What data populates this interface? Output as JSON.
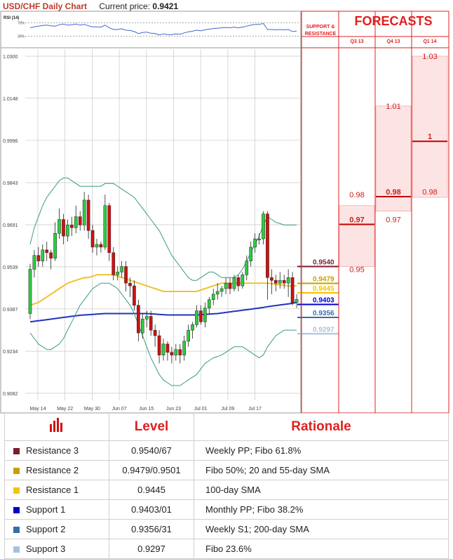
{
  "header": {
    "title": "USD/CHF Daily Chart",
    "current_price_label": "Current price:",
    "current_price": "0.9421"
  },
  "rsi": {
    "label": "RSI (14)",
    "levels": [
      "70%",
      "30%"
    ]
  },
  "forecasts": {
    "title": "FORECASTS",
    "sr_label": "SUPPORT & RESISTANCE",
    "quarters": [
      "Q3 13",
      "Q4 13",
      "Q1 14"
    ],
    "columns": [
      {
        "quarter": "Q3 13",
        "range": [
          0.954,
          0.976
        ],
        "values": [
          {
            "text": "0.98",
            "price": 0.979,
            "bold": false
          },
          {
            "text": "0.97",
            "price": 0.97,
            "bold": true
          },
          {
            "text": "0.95",
            "price": 0.952,
            "bold": false
          }
        ]
      },
      {
        "quarter": "Q4 13",
        "range": [
          0.974,
          1.012
        ],
        "values": [
          {
            "text": "1.01",
            "price": 1.011,
            "bold": false
          },
          {
            "text": "0.98",
            "price": 0.98,
            "bold": true
          },
          {
            "text": "0.97",
            "price": 0.97,
            "bold": false
          }
        ]
      },
      {
        "quarter": "Q1 14",
        "range": [
          0.979,
          1.03
        ],
        "values": [
          {
            "text": "1.03",
            "price": 1.029,
            "bold": false
          },
          {
            "text": "1",
            "price": 1.0,
            "bold": true
          },
          {
            "text": "0.98",
            "price": 0.98,
            "bold": false
          }
        ]
      }
    ]
  },
  "colors": {
    "resistance3": "#7b1e2e",
    "resistance2": "#c8a000",
    "resistance1": "#f5c400",
    "support1": "#0000cc",
    "support2": "#3a6ea5",
    "support3": "#a8c0e0",
    "candle_up": "#2ecc40",
    "candle_down": "#cc1111",
    "sma_yellow": "#f2c12e",
    "sma_blue": "#2233bb",
    "bollinger": "#3a9a8a",
    "forecast_fill": "#fde4e4",
    "forecast_border": "#f4a0a0"
  },
  "chart_data": {
    "type": "candlestick",
    "title": "USD/CHF Daily Chart",
    "ylim": [
      0.9082,
      1.03
    ],
    "y_ticks": [
      "0.9082",
      "0.9234",
      "0.9387",
      "0.9539",
      "0.9691",
      "0.9843",
      "0.9996",
      "1.0148",
      "1.0300"
    ],
    "x_ticks": [
      "May 14",
      "May 22",
      "May 30",
      "Jun 07",
      "Jun 15",
      "Jun 23",
      "Jul 01",
      "Jul 09",
      "Jul 17"
    ],
    "grid": true,
    "candles": [
      [
        0.937,
        0.953,
        0.935,
        0.955
      ],
      [
        0.953,
        0.958,
        0.95,
        0.96
      ],
      [
        0.958,
        0.956,
        0.954,
        0.961
      ],
      [
        0.956,
        0.96,
        0.954,
        0.962
      ],
      [
        0.96,
        0.959,
        0.956,
        0.963
      ],
      [
        0.959,
        0.957,
        0.953,
        0.96
      ],
      [
        0.957,
        0.966,
        0.956,
        0.97
      ],
      [
        0.966,
        0.971,
        0.964,
        0.975
      ],
      [
        0.971,
        0.965,
        0.962,
        0.973
      ],
      [
        0.965,
        0.969,
        0.963,
        0.971
      ],
      [
        0.969,
        0.968,
        0.965,
        0.972
      ],
      [
        0.968,
        0.972,
        0.966,
        0.976
      ],
      [
        0.972,
        0.969,
        0.967,
        0.974
      ],
      [
        0.969,
        0.978,
        0.967,
        0.981
      ],
      [
        0.978,
        0.967,
        0.964,
        0.98
      ],
      [
        0.967,
        0.961,
        0.959,
        0.969
      ],
      [
        0.961,
        0.962,
        0.958,
        0.964
      ],
      [
        0.962,
        0.961,
        0.959,
        0.963
      ],
      [
        0.961,
        0.976,
        0.96,
        0.98
      ],
      [
        0.976,
        0.959,
        0.956,
        0.977
      ],
      [
        0.959,
        0.951,
        0.949,
        0.961
      ],
      [
        0.951,
        0.952,
        0.949,
        0.954
      ],
      [
        0.952,
        0.954,
        0.95,
        0.956
      ],
      [
        0.954,
        0.948,
        0.945,
        0.956
      ],
      [
        0.948,
        0.947,
        0.943,
        0.95
      ],
      [
        0.947,
        0.94,
        0.938,
        0.949
      ],
      [
        0.94,
        0.93,
        0.927,
        0.942
      ],
      [
        0.93,
        0.935,
        0.928,
        0.937
      ],
      [
        0.935,
        0.936,
        0.932,
        0.938
      ],
      [
        0.936,
        0.931,
        0.929,
        0.938
      ],
      [
        0.931,
        0.929,
        0.925,
        0.933
      ],
      [
        0.929,
        0.922,
        0.919,
        0.931
      ],
      [
        0.922,
        0.926,
        0.92,
        0.928
      ],
      [
        0.926,
        0.923,
        0.92,
        0.927
      ],
      [
        0.923,
        0.922,
        0.919,
        0.925
      ],
      [
        0.922,
        0.924,
        0.92,
        0.926
      ],
      [
        0.924,
        0.922,
        0.919,
        0.926
      ],
      [
        0.922,
        0.927,
        0.92,
        0.929
      ],
      [
        0.927,
        0.931,
        0.925,
        0.933
      ],
      [
        0.931,
        0.933,
        0.928,
        0.934
      ],
      [
        0.933,
        0.938,
        0.932,
        0.94
      ],
      [
        0.938,
        0.934,
        0.933,
        0.94
      ],
      [
        0.934,
        0.939,
        0.932,
        0.941
      ],
      [
        0.939,
        0.942,
        0.937,
        0.943
      ],
      [
        0.942,
        0.944,
        0.94,
        0.946
      ],
      [
        0.944,
        0.945,
        0.942,
        0.948
      ],
      [
        0.945,
        0.946,
        0.943,
        0.947
      ],
      [
        0.946,
        0.948,
        0.944,
        0.95
      ],
      [
        0.948,
        0.946,
        0.944,
        0.95
      ],
      [
        0.946,
        0.95,
        0.945,
        0.951
      ],
      [
        0.95,
        0.947,
        0.945,
        0.951
      ],
      [
        0.947,
        0.951,
        0.946,
        0.952
      ],
      [
        0.951,
        0.956,
        0.949,
        0.958
      ],
      [
        0.956,
        0.961,
        0.954,
        0.963
      ],
      [
        0.961,
        0.964,
        0.959,
        0.966
      ],
      [
        0.964,
        0.964,
        0.962,
        0.966
      ],
      [
        0.964,
        0.973,
        0.962,
        0.974
      ],
      [
        0.973,
        0.95,
        0.942,
        0.974
      ],
      [
        0.95,
        0.949,
        0.944,
        0.953
      ],
      [
        0.949,
        0.948,
        0.945,
        0.951
      ],
      [
        0.948,
        0.949,
        0.946,
        0.952
      ],
      [
        0.949,
        0.948,
        0.946,
        0.951
      ],
      [
        0.948,
        0.95,
        0.943,
        0.953
      ],
      [
        0.95,
        0.941,
        0.94,
        0.952
      ],
      [
        0.941,
        0.9421,
        0.939,
        0.944
      ]
    ],
    "series": [
      {
        "name": "SMA",
        "color": "#f2c12e",
        "values": [
          0.94,
          0.9405,
          0.941,
          0.942,
          0.943,
          0.944,
          0.945,
          0.946,
          0.947,
          0.948,
          0.9485,
          0.949,
          0.9495,
          0.95,
          0.95,
          0.9505,
          0.951,
          0.951,
          0.951,
          0.951,
          0.951,
          0.9505,
          0.95,
          0.9495,
          0.949,
          0.9485,
          0.948,
          0.9475,
          0.947,
          0.9465,
          0.946,
          0.9455,
          0.945,
          0.945,
          0.945,
          0.945,
          0.945,
          0.945,
          0.945,
          0.945,
          0.945,
          0.9455,
          0.946,
          0.9465,
          0.947,
          0.9475,
          0.948,
          0.948,
          0.948,
          0.948,
          0.948,
          0.948,
          0.948,
          0.948,
          0.948,
          0.948,
          0.948,
          0.948,
          0.9478,
          0.9476,
          0.9474,
          0.9472,
          0.947,
          0.947,
          0.947
        ]
      },
      {
        "name": "SMA",
        "color": "#2233bb",
        "values": [
          0.934,
          0.9342,
          0.9344,
          0.9346,
          0.9348,
          0.935,
          0.9352,
          0.9354,
          0.9356,
          0.9358,
          0.936,
          0.9362,
          0.9364,
          0.9365,
          0.9366,
          0.9367,
          0.9368,
          0.9369,
          0.937,
          0.937,
          0.937,
          0.937,
          0.937,
          0.937,
          0.937,
          0.937,
          0.937,
          0.937,
          0.937,
          0.9369,
          0.9368,
          0.9367,
          0.9366,
          0.9365,
          0.9365,
          0.9365,
          0.9365,
          0.9365,
          0.9365,
          0.9365,
          0.9365,
          0.9366,
          0.9367,
          0.9368,
          0.9369,
          0.937,
          0.9372,
          0.9374,
          0.9376,
          0.9378,
          0.938,
          0.9382,
          0.9384,
          0.9386,
          0.9388,
          0.939,
          0.9392,
          0.9395,
          0.9397,
          0.9399,
          0.9401,
          0.9403,
          0.9405,
          0.9407,
          0.941
        ]
      },
      {
        "name": "Bollinger upper",
        "color": "#3a9a8a",
        "values": [
          0.962,
          0.968,
          0.972,
          0.976,
          0.979,
          0.981,
          0.983,
          0.985,
          0.986,
          0.986,
          0.985,
          0.984,
          0.983,
          0.983,
          0.983,
          0.983,
          0.983,
          0.983,
          0.984,
          0.984,
          0.984,
          0.983,
          0.982,
          0.981,
          0.98,
          0.979,
          0.977,
          0.975,
          0.973,
          0.971,
          0.969,
          0.967,
          0.964,
          0.961,
          0.958,
          0.956,
          0.954,
          0.952,
          0.95,
          0.949,
          0.949,
          0.95,
          0.951,
          0.952,
          0.952,
          0.951,
          0.95,
          0.95,
          0.95,
          0.95,
          0.951,
          0.953,
          0.956,
          0.959,
          0.962,
          0.965,
          0.969,
          0.972,
          0.971,
          0.97,
          0.9695,
          0.969,
          0.969,
          0.969,
          0.969
        ]
      },
      {
        "name": "Bollinger lower",
        "color": "#3a9a8a",
        "values": [
          0.93,
          0.928,
          0.926,
          0.925,
          0.924,
          0.924,
          0.925,
          0.926,
          0.928,
          0.931,
          0.934,
          0.937,
          0.94,
          0.942,
          0.944,
          0.946,
          0.947,
          0.948,
          0.948,
          0.948,
          0.947,
          0.946,
          0.944,
          0.942,
          0.94,
          0.937,
          0.933,
          0.929,
          0.925,
          0.921,
          0.918,
          0.915,
          0.913,
          0.912,
          0.911,
          0.911,
          0.911,
          0.912,
          0.913,
          0.914,
          0.915,
          0.917,
          0.919,
          0.92,
          0.921,
          0.9215,
          0.922,
          0.923,
          0.924,
          0.925,
          0.925,
          0.925,
          0.924,
          0.923,
          0.922,
          0.921,
          0.922,
          0.925,
          0.927,
          0.929,
          0.93,
          0.931,
          0.931,
          0.931,
          0.931
        ]
      }
    ],
    "rsi_values": [
      55,
      58,
      60,
      62,
      63,
      61,
      60,
      64,
      66,
      63,
      64,
      66,
      63,
      65,
      61,
      58,
      58,
      57,
      63,
      55,
      50,
      50,
      52,
      48,
      47,
      44,
      38,
      41,
      42,
      39,
      38,
      34,
      37,
      35,
      35,
      37,
      36,
      40,
      43,
      45,
      48,
      46,
      49,
      51,
      53,
      54,
      55,
      56,
      55,
      57,
      55,
      57,
      60,
      63,
      65,
      65,
      68,
      50,
      50,
      49,
      50,
      49,
      50,
      44,
      45
    ],
    "levels_on_chart": [
      {
        "text": "0.9540",
        "price": 0.954,
        "color": "#7b1e2e"
      },
      {
        "text": "0.9479",
        "price": 0.9479,
        "color": "#c8a000"
      },
      {
        "text": "0.9445",
        "price": 0.9445,
        "color": "#f5c400"
      },
      {
        "text": "0.9403",
        "price": 0.9403,
        "color": "#0000cc"
      },
      {
        "text": "0.9356",
        "price": 0.9356,
        "color": "#3a6ea5"
      },
      {
        "text": "0.9297",
        "price": 0.9297,
        "color": "#a8c0e0"
      }
    ]
  },
  "levels_table": {
    "headers": [
      "Level",
      "Rationale"
    ],
    "rows": [
      {
        "name": "Resistance 3",
        "level": "0.9540/67",
        "rationale": "Weekly PP; Fibo 61.8%",
        "color": "#7b1e2e"
      },
      {
        "name": "Resistance 2",
        "level": "0.9479/0.9501",
        "rationale": "Fibo 50%; 20 and 55-day SMA",
        "color": "#c8a000"
      },
      {
        "name": "Resistance 1",
        "level": "0.9445",
        "rationale": "100-day SMA",
        "color": "#f5c400"
      },
      {
        "name": "Support 1",
        "level": "0.9403/01",
        "rationale": "Monthly PP; Fibo 38.2%",
        "color": "#0000cc"
      },
      {
        "name": "Support 2",
        "level": "0.9356/31",
        "rationale": "Weekly S1; 200-day SMA",
        "color": "#3a6ea5"
      },
      {
        "name": "Support 3",
        "level": "0.9297",
        "rationale": "Fibo 23.6%",
        "color": "#a8c0e0"
      }
    ]
  }
}
